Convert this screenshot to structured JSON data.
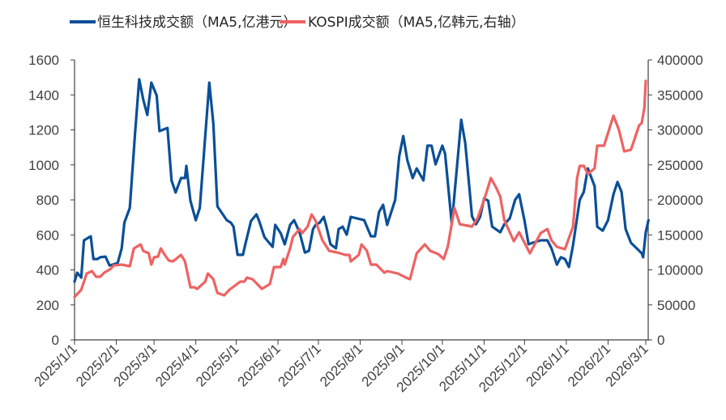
{
  "chart_data": {
    "type": "line",
    "title": "",
    "xlabel": "",
    "ylabel": "",
    "y2label": "",
    "legend_position": "top",
    "grid": false,
    "xlim": [
      "2025-01-01",
      "2026-03-01"
    ],
    "ylim": [
      0,
      1600
    ],
    "y2lim": [
      0,
      400000
    ],
    "x_ticks": [
      "2025/1/1",
      "2025/2/1",
      "2025/3/1",
      "2025/4/1",
      "2025/5/1",
      "2025/6/1",
      "2025/7/1",
      "2025/8/1",
      "2025/9/1",
      "2025/10/1",
      "2025/11/1",
      "2025/12/1",
      "2026/1/1",
      "2026/2/1",
      "2026/3/1"
    ],
    "y_ticks": [
      "0",
      "200",
      "400",
      "600",
      "800",
      "1000",
      "1200",
      "1400",
      "1600"
    ],
    "y2_ticks": [
      "0",
      "50000",
      "100000",
      "150000",
      "200000",
      "250000",
      "300000",
      "350000",
      "400000"
    ],
    "series": [
      {
        "name": "恒生科技成交额（MA5,亿港元）",
        "axis": "left",
        "color": "#0b4f97",
        "points": [
          [
            "2025-01-01",
            333
          ],
          [
            "2025-01-03",
            384
          ],
          [
            "2025-01-06",
            356
          ],
          [
            "2025-01-08",
            569
          ],
          [
            "2025-01-13",
            592
          ],
          [
            "2025-01-15",
            462
          ],
          [
            "2025-01-18",
            462
          ],
          [
            "2025-01-20",
            472
          ],
          [
            "2025-01-24",
            476
          ],
          [
            "2025-01-27",
            425
          ],
          [
            "2025-02-02",
            439
          ],
          [
            "2025-02-05",
            523
          ],
          [
            "2025-02-07",
            670
          ],
          [
            "2025-02-11",
            754
          ],
          [
            "2025-02-15",
            1188
          ],
          [
            "2025-02-18",
            1489
          ],
          [
            "2025-02-21",
            1373
          ],
          [
            "2025-02-24",
            1285
          ],
          [
            "2025-02-27",
            1470
          ],
          [
            "2025-03-03",
            1396
          ],
          [
            "2025-03-05",
            1193
          ],
          [
            "2025-03-11",
            1211
          ],
          [
            "2025-03-14",
            911
          ],
          [
            "2025-03-17",
            842
          ],
          [
            "2025-03-21",
            925
          ],
          [
            "2025-03-24",
            925
          ],
          [
            "2025-03-25",
            994
          ],
          [
            "2025-03-28",
            795
          ],
          [
            "2025-04-01",
            684
          ],
          [
            "2025-04-04",
            754
          ],
          [
            "2025-04-11",
            1470
          ],
          [
            "2025-04-14",
            1235
          ],
          [
            "2025-04-17",
            763
          ],
          [
            "2025-04-24",
            684
          ],
          [
            "2025-04-27",
            670
          ],
          [
            "2025-04-29",
            647
          ],
          [
            "2025-05-02",
            486
          ],
          [
            "2025-05-06",
            486
          ],
          [
            "2025-05-08",
            555
          ],
          [
            "2025-05-12",
            680
          ],
          [
            "2025-05-16",
            717
          ],
          [
            "2025-05-18",
            680
          ],
          [
            "2025-05-22",
            587
          ],
          [
            "2025-05-28",
            532
          ],
          [
            "2025-05-30",
            657
          ],
          [
            "2025-06-03",
            610
          ],
          [
            "2025-06-06",
            546
          ],
          [
            "2025-06-10",
            657
          ],
          [
            "2025-06-13",
            684
          ],
          [
            "2025-06-17",
            615
          ],
          [
            "2025-06-21",
            499
          ],
          [
            "2025-06-24",
            509
          ],
          [
            "2025-06-27",
            633
          ],
          [
            "2025-06-29",
            657
          ],
          [
            "2025-07-02",
            670
          ],
          [
            "2025-07-05",
            703
          ],
          [
            "2025-07-07",
            647
          ],
          [
            "2025-07-10",
            546
          ],
          [
            "2025-07-14",
            523
          ],
          [
            "2025-07-16",
            633
          ],
          [
            "2025-07-19",
            647
          ],
          [
            "2025-07-22",
            601
          ],
          [
            "2025-07-25",
            703
          ],
          [
            "2025-08-04",
            684
          ],
          [
            "2025-08-09",
            592
          ],
          [
            "2025-08-12",
            592
          ],
          [
            "2025-08-15",
            731
          ],
          [
            "2025-08-18",
            772
          ],
          [
            "2025-08-21",
            657
          ],
          [
            "2025-08-27",
            800
          ],
          [
            "2025-08-30",
            1050
          ],
          [
            "2025-09-02",
            1165
          ],
          [
            "2025-09-05",
            1027
          ],
          [
            "2025-09-09",
            925
          ],
          [
            "2025-09-12",
            980
          ],
          [
            "2025-09-17",
            911
          ],
          [
            "2025-09-20",
            1110
          ],
          [
            "2025-09-23",
            1110
          ],
          [
            "2025-09-26",
            1003
          ],
          [
            "2025-10-01",
            1110
          ],
          [
            "2025-10-03",
            1064
          ],
          [
            "2025-10-08",
            661
          ],
          [
            "2025-10-15",
            1258
          ],
          [
            "2025-10-18",
            1124
          ],
          [
            "2025-10-23",
            707
          ],
          [
            "2025-10-26",
            661
          ],
          [
            "2025-10-29",
            703
          ],
          [
            "2025-11-01",
            809
          ],
          [
            "2025-11-04",
            795
          ],
          [
            "2025-11-07",
            647
          ],
          [
            "2025-11-13",
            615
          ],
          [
            "2025-11-16",
            661
          ],
          [
            "2025-11-20",
            694
          ],
          [
            "2025-11-24",
            800
          ],
          [
            "2025-11-27",
            832
          ],
          [
            "2025-12-01",
            680
          ],
          [
            "2025-12-04",
            546
          ],
          [
            "2025-12-07",
            555
          ],
          [
            "2025-12-13",
            569
          ],
          [
            "2025-12-18",
            569
          ],
          [
            "2025-12-21",
            523
          ],
          [
            "2025-12-25",
            430
          ],
          [
            "2025-12-28",
            472
          ],
          [
            "2025-12-31",
            462
          ],
          [
            "2026-01-03",
            416
          ],
          [
            "2026-01-06",
            541
          ],
          [
            "2026-01-11",
            800
          ],
          [
            "2026-01-14",
            846
          ],
          [
            "2026-01-17",
            980
          ],
          [
            "2026-01-22",
            879
          ],
          [
            "2026-01-24",
            647
          ],
          [
            "2026-01-28",
            624
          ],
          [
            "2026-02-01",
            684
          ],
          [
            "2026-02-05",
            832
          ],
          [
            "2026-02-08",
            902
          ],
          [
            "2026-02-11",
            846
          ],
          [
            "2026-02-14",
            633
          ],
          [
            "2026-02-18",
            555
          ],
          [
            "2026-02-26",
            495
          ],
          [
            "2026-02-27",
            472
          ],
          [
            "2026-03-01",
            615
          ],
          [
            "2026-03-03",
            684
          ]
        ]
      },
      {
        "name": "KOSPI成交额（MA5,亿韩元,右轴）",
        "axis": "right",
        "color": "#ef6262",
        "points": [
          [
            "2025-01-01",
            61300
          ],
          [
            "2025-01-06",
            71700
          ],
          [
            "2025-01-10",
            94800
          ],
          [
            "2025-01-14",
            98300
          ],
          [
            "2025-01-17",
            90200
          ],
          [
            "2025-01-20",
            90200
          ],
          [
            "2025-01-23",
            95900
          ],
          [
            "2025-01-28",
            101700
          ],
          [
            "2025-01-30",
            106400
          ],
          [
            "2025-02-05",
            107500
          ],
          [
            "2025-02-11",
            105200
          ],
          [
            "2025-02-14",
            130600
          ],
          [
            "2025-02-19",
            136400
          ],
          [
            "2025-02-21",
            127200
          ],
          [
            "2025-02-25",
            123700
          ],
          [
            "2025-02-27",
            107500
          ],
          [
            "2025-03-01",
            117900
          ],
          [
            "2025-03-04",
            119100
          ],
          [
            "2025-03-06",
            130600
          ],
          [
            "2025-03-09",
            121400
          ],
          [
            "2025-03-12",
            113300
          ],
          [
            "2025-03-15",
            112100
          ],
          [
            "2025-03-21",
            121400
          ],
          [
            "2025-03-24",
            112100
          ],
          [
            "2025-03-28",
            75100
          ],
          [
            "2025-03-31",
            75100
          ],
          [
            "2025-04-02",
            72800
          ],
          [
            "2025-04-08",
            83200
          ],
          [
            "2025-04-10",
            94800
          ],
          [
            "2025-04-14",
            86700
          ],
          [
            "2025-04-17",
            67000
          ],
          [
            "2025-04-22",
            63600
          ],
          [
            "2025-04-26",
            71700
          ],
          [
            "2025-04-30",
            77500
          ],
          [
            "2025-05-04",
            83200
          ],
          [
            "2025-05-07",
            83200
          ],
          [
            "2025-05-09",
            89000
          ],
          [
            "2025-05-13",
            86700
          ],
          [
            "2025-05-16",
            80900
          ],
          [
            "2025-05-20",
            72800
          ],
          [
            "2025-05-26",
            79800
          ],
          [
            "2025-05-29",
            104000
          ],
          [
            "2025-06-03",
            104000
          ],
          [
            "2025-06-05",
            115600
          ],
          [
            "2025-06-06",
            107500
          ],
          [
            "2025-06-10",
            130600
          ],
          [
            "2025-06-12",
            146800
          ],
          [
            "2025-06-17",
            158400
          ],
          [
            "2025-06-19",
            152600
          ],
          [
            "2025-06-23",
            161800
          ],
          [
            "2025-06-26",
            179200
          ],
          [
            "2025-06-29",
            169900
          ],
          [
            "2025-07-04",
            142200
          ],
          [
            "2025-07-09",
            127200
          ],
          [
            "2025-07-15",
            124800
          ],
          [
            "2025-07-21",
            121400
          ],
          [
            "2025-07-24",
            121400
          ],
          [
            "2025-07-25",
            112100
          ],
          [
            "2025-07-31",
            121400
          ],
          [
            "2025-08-02",
            136400
          ],
          [
            "2025-08-06",
            127200
          ],
          [
            "2025-08-09",
            107500
          ],
          [
            "2025-08-13",
            107500
          ],
          [
            "2025-08-19",
            95900
          ],
          [
            "2025-08-21",
            98300
          ],
          [
            "2025-08-29",
            94800
          ],
          [
            "2025-09-04",
            89000
          ],
          [
            "2025-09-07",
            86700
          ],
          [
            "2025-09-12",
            123700
          ],
          [
            "2025-09-18",
            136400
          ],
          [
            "2025-09-22",
            127200
          ],
          [
            "2025-09-28",
            122500
          ],
          [
            "2025-10-02",
            115600
          ],
          [
            "2025-10-05",
            132900
          ],
          [
            "2025-10-10",
            188400
          ],
          [
            "2025-10-14",
            165300
          ],
          [
            "2025-10-23",
            161800
          ],
          [
            "2025-10-27",
            173400
          ],
          [
            "2025-11-01",
            200000
          ],
          [
            "2025-11-06",
            231200
          ],
          [
            "2025-11-10",
            217300
          ],
          [
            "2025-11-13",
            204600
          ],
          [
            "2025-11-16",
            171100
          ],
          [
            "2025-11-23",
            141000
          ],
          [
            "2025-11-27",
            153700
          ],
          [
            "2025-12-05",
            123700
          ],
          [
            "2025-12-13",
            152600
          ],
          [
            "2025-12-18",
            158400
          ],
          [
            "2025-12-21",
            142200
          ],
          [
            "2025-12-25",
            132900
          ],
          [
            "2025-12-31",
            129500
          ],
          [
            "2026-01-06",
            161800
          ],
          [
            "2026-01-09",
            231200
          ],
          [
            "2026-01-11",
            248500
          ],
          [
            "2026-01-14",
            248500
          ],
          [
            "2026-01-17",
            237000
          ],
          [
            "2026-01-22",
            245100
          ],
          [
            "2026-01-24",
            277400
          ],
          [
            "2026-01-29",
            277400
          ],
          [
            "2026-02-05",
            320200
          ],
          [
            "2026-02-09",
            300600
          ],
          [
            "2026-02-13",
            269300
          ],
          [
            "2026-02-18",
            271700
          ],
          [
            "2026-02-24",
            306300
          ],
          [
            "2026-02-26",
            309800
          ],
          [
            "2026-02-28",
            331800
          ],
          [
            "2026-03-01",
            369900
          ]
        ]
      }
    ]
  }
}
